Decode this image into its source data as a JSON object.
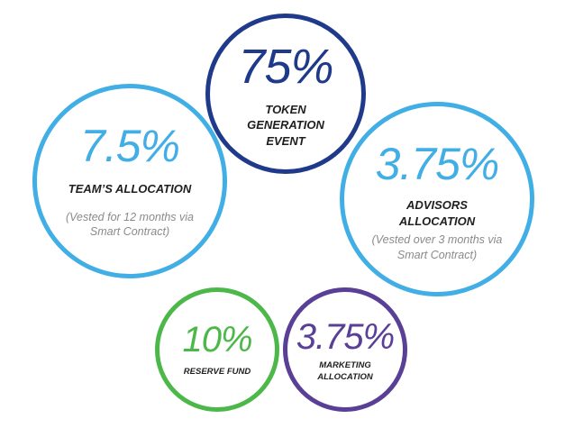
{
  "allocations": {
    "token_generation_event": {
      "percent": "75%",
      "label": "TOKEN GENERATION EVENT",
      "color": "#1f3a8a"
    },
    "team": {
      "percent": "7.5%",
      "label": "TEAM’S ALLOCATION",
      "note": "(Vested for 12 months via Smart Contract)",
      "color": "#41aee6"
    },
    "advisors": {
      "percent": "3.75%",
      "label": "ADVISORS ALLOCATION",
      "note": "(Vested over 3 months via Smart Contract)",
      "color": "#41aee6"
    },
    "reserve_fund": {
      "percent": "10%",
      "label": "RESERVE FUND",
      "color": "#4db84a"
    },
    "marketing": {
      "percent": "3.75%",
      "label": "MARKETING ALLOCATION",
      "color": "#5a3f96"
    }
  }
}
